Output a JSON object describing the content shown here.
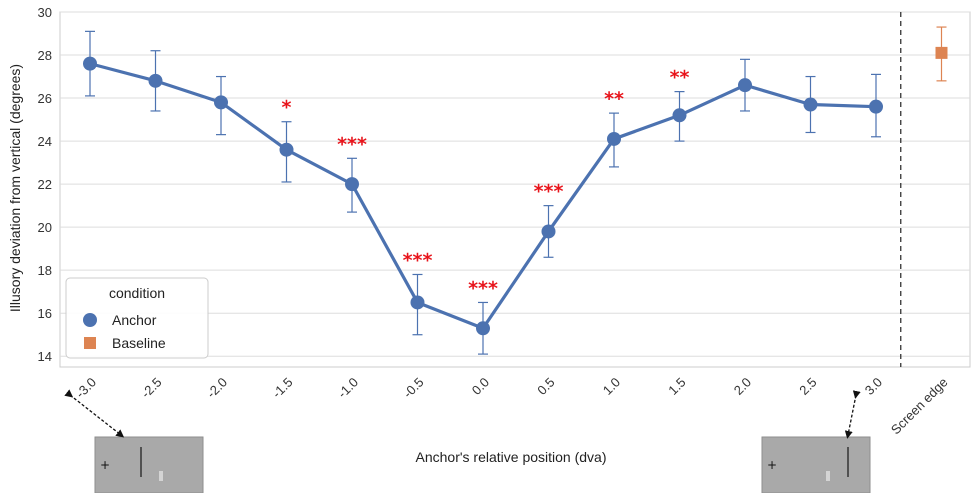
{
  "chart_data": {
    "type": "line",
    "xlabel": "Anchor's relative position (dva)",
    "ylabel": "Illusory deviation from vertical (degrees)",
    "ylim": [
      13.5,
      30
    ],
    "yticks": [
      14,
      16,
      18,
      20,
      22,
      24,
      26,
      28,
      30
    ],
    "categories": [
      "-3.0",
      "-2.5",
      "-2.0",
      "-1.5",
      "-1.0",
      "-0.5",
      "0.0",
      "0.5",
      "1.0",
      "1.5",
      "2.0",
      "2.5",
      "3.0",
      "Screen edge"
    ],
    "grid": "horizontal",
    "series": [
      {
        "name": "Anchor",
        "color": "#4c72b0",
        "marker": "circle",
        "x": [
          "-3.0",
          "-2.5",
          "-2.0",
          "-1.5",
          "-1.0",
          "-0.5",
          "0.0",
          "0.5",
          "1.0",
          "1.5",
          "2.0",
          "2.5",
          "3.0"
        ],
        "values": [
          27.6,
          26.8,
          25.8,
          23.6,
          22.0,
          16.5,
          15.3,
          19.8,
          24.1,
          25.2,
          26.6,
          25.7,
          25.6
        ],
        "err_low": [
          26.1,
          25.4,
          24.3,
          22.1,
          20.7,
          15.0,
          14.1,
          18.6,
          22.8,
          24.0,
          25.4,
          24.4,
          24.2
        ],
        "err_high": [
          29.1,
          28.2,
          27.0,
          24.9,
          23.2,
          17.8,
          16.5,
          21.0,
          25.3,
          26.3,
          27.8,
          27.0,
          27.1
        ],
        "significance": [
          "",
          "",
          "",
          "*",
          "***",
          "***",
          "***",
          "***",
          "**",
          "**",
          "",
          "",
          ""
        ]
      },
      {
        "name": "Baseline",
        "color": "#dd8452",
        "marker": "square",
        "x": [
          "Screen edge"
        ],
        "values": [
          28.1
        ],
        "err_low": [
          26.8
        ],
        "err_high": [
          29.3
        ]
      }
    ],
    "legend": {
      "title": "condition",
      "placement": "lower-left",
      "entries": [
        "Anchor",
        "Baseline"
      ]
    },
    "divider": {
      "after_category": "3.0",
      "style": "dashed"
    },
    "thumbnails": [
      {
        "name": "stimulus-thumbnail-left",
        "points_to": "-3.0"
      },
      {
        "name": "stimulus-thumbnail-right",
        "points_to": "3.0"
      }
    ]
  }
}
